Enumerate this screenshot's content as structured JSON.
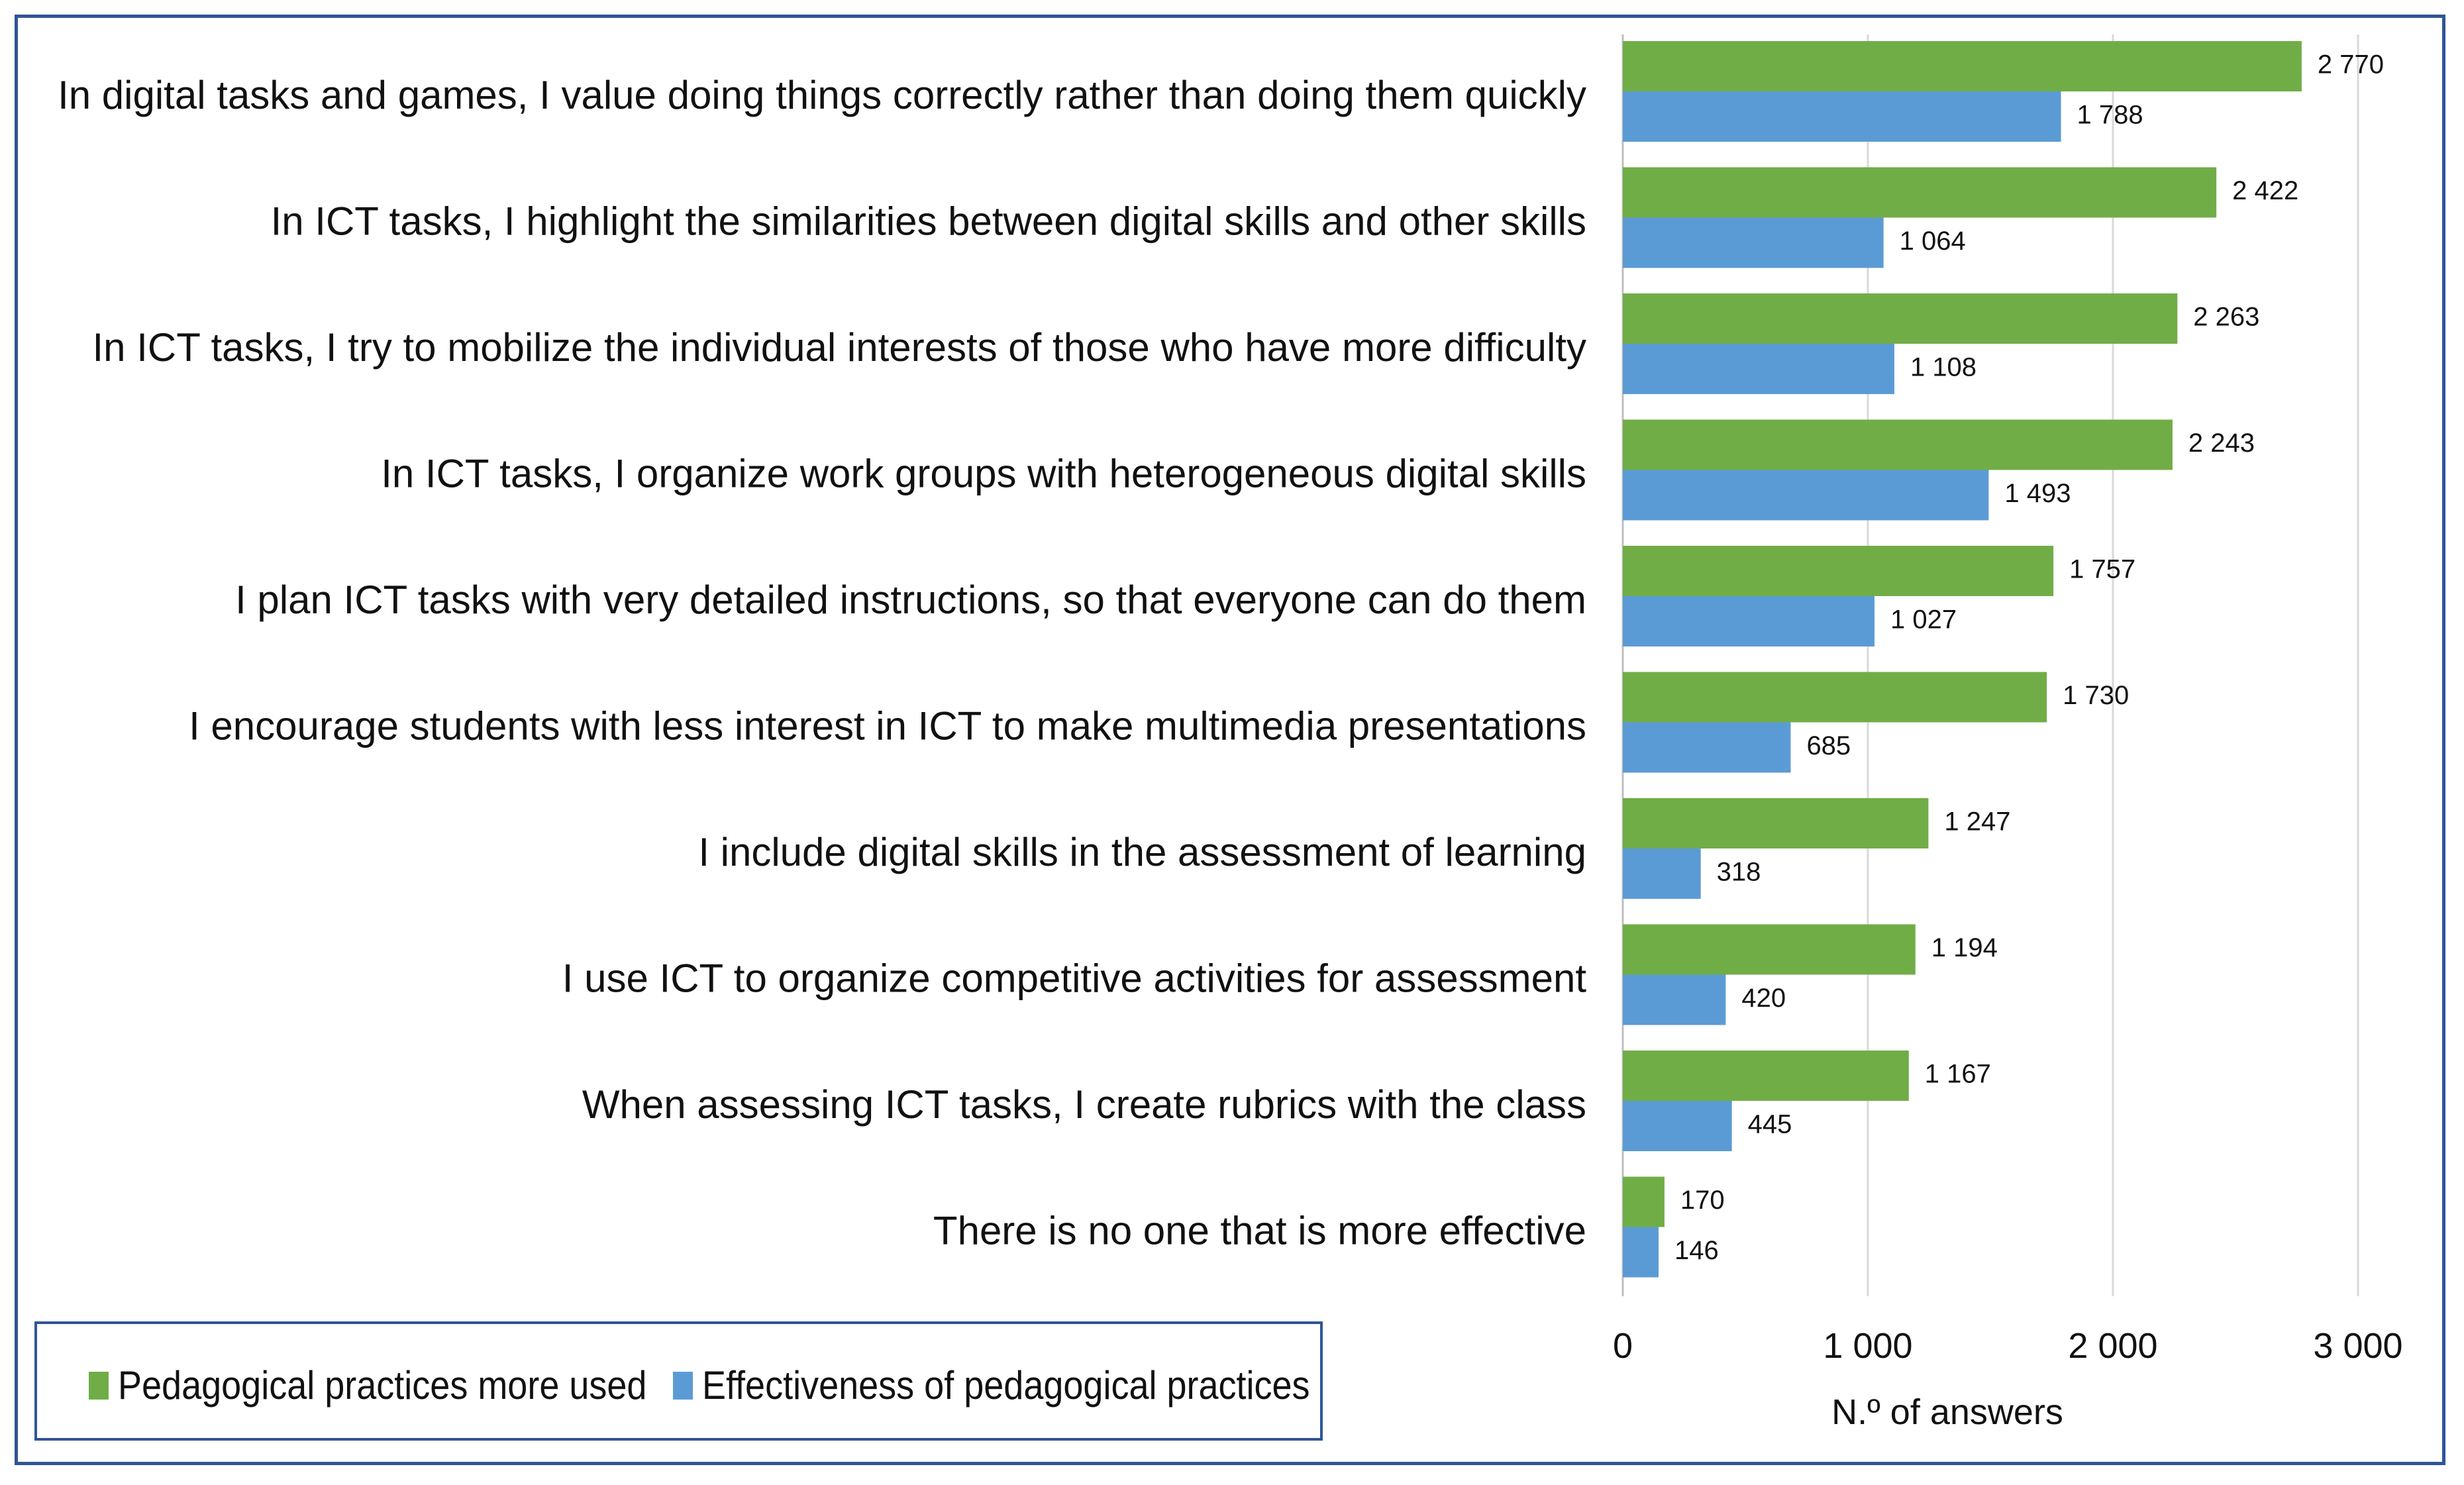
{
  "chart_data": {
    "type": "bar",
    "orientation": "horizontal",
    "title": "",
    "xlabel": "N.º of answers",
    "ylabel": "",
    "xlim": [
      0,
      3000
    ],
    "x_ticks": [
      0,
      1000,
      2000,
      3000
    ],
    "x_tick_labels": [
      "0",
      "1 000",
      "2 000",
      "3 000"
    ],
    "grid": true,
    "legend_position": "bottom-left",
    "categories": [
      "In digital tasks and games, I value doing things correctly rather than doing them quickly",
      "In ICT tasks, I highlight the similarities between digital skills and other skills",
      "In ICT tasks, I try to mobilize the individual interests of those who have more difficulty",
      "In ICT tasks, I organize work groups with heterogeneous digital skills",
      "I plan ICT tasks with very detailed instructions, so that everyone can do them",
      "I encourage students with less interest in ICT to make multimedia presentations",
      "I include digital skills in the assessment of learning",
      "I use ICT to organize competitive activities for assessment",
      "When assessing ICT tasks, I create rubrics with the class",
      "There is no one that is more effective"
    ],
    "series": [
      {
        "name": "Pedagogical practices more used",
        "color": "#70ad47",
        "values": [
          2770,
          2422,
          2263,
          2243,
          1757,
          1730,
          1247,
          1194,
          1167,
          170
        ],
        "labels": [
          "2 770",
          "2 422",
          "2 263",
          "2 243",
          "1 757",
          "1 730",
          "1 247",
          "1 194",
          "1 167",
          "170"
        ]
      },
      {
        "name": "Effectiveness of pedagogical practices",
        "color": "#5b9bd5",
        "values": [
          1788,
          1064,
          1108,
          1493,
          1027,
          685,
          318,
          420,
          445,
          146
        ],
        "labels": [
          "1 788",
          "1 064",
          "1 108",
          "1 493",
          "1 027",
          "685",
          "318",
          "420",
          "445",
          "146"
        ]
      }
    ]
  },
  "legend": {
    "items": [
      {
        "label": "Pedagogical practices more used",
        "color": "#70ad47"
      },
      {
        "label": "Effectiveness of pedagogical practices",
        "color": "#5b9bd5"
      }
    ]
  },
  "colors": {
    "frame": "#2f5597",
    "grid": "#d9d9d9"
  }
}
